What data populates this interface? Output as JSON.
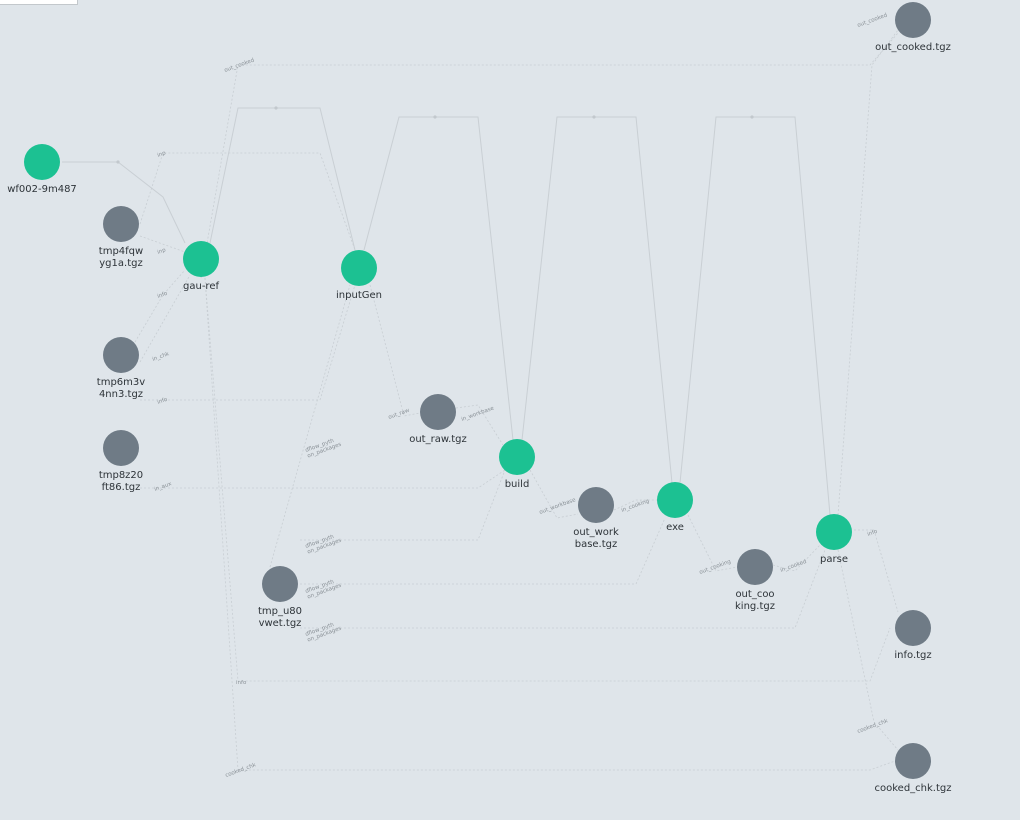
{
  "graph": {
    "nodes": [
      {
        "id": "wf",
        "kind": "step",
        "lines": [
          "wf002-9m487"
        ]
      },
      {
        "id": "tmp4",
        "kind": "file",
        "lines": [
          "tmp4fqw",
          "yg1a.tgz"
        ]
      },
      {
        "id": "gau",
        "kind": "step",
        "lines": [
          "gau-ref"
        ]
      },
      {
        "id": "tmp6",
        "kind": "file",
        "lines": [
          "tmp6m3v",
          "4nn3.tgz"
        ]
      },
      {
        "id": "tmp8",
        "kind": "file",
        "lines": [
          "tmp8z20",
          "ft86.tgz"
        ]
      },
      {
        "id": "input",
        "kind": "step",
        "lines": [
          "inputGen"
        ]
      },
      {
        "id": "outraw",
        "kind": "file",
        "lines": [
          "out_raw.tgz"
        ]
      },
      {
        "id": "build",
        "kind": "step",
        "lines": [
          "build"
        ]
      },
      {
        "id": "outwork",
        "kind": "file",
        "lines": [
          "out_work",
          "base.tgz"
        ]
      },
      {
        "id": "exe",
        "kind": "step",
        "lines": [
          "exe"
        ]
      },
      {
        "id": "outcook",
        "kind": "file",
        "lines": [
          "out_coo",
          "king.tgz"
        ]
      },
      {
        "id": "parse",
        "kind": "step",
        "lines": [
          "parse"
        ]
      },
      {
        "id": "tmpu",
        "kind": "file",
        "lines": [
          "tmp_u80",
          "vwet.tgz"
        ]
      },
      {
        "id": "cooked",
        "kind": "file",
        "lines": [
          "out_cooked.tgz"
        ]
      },
      {
        "id": "info",
        "kind": "file",
        "lines": [
          "info.tgz"
        ]
      },
      {
        "id": "chk",
        "kind": "file",
        "lines": [
          "cooked_chk.tgz"
        ]
      }
    ],
    "edge_labels": [
      {
        "id": "l-out-cooked-a",
        "lines": [
          "out_cooked"
        ]
      },
      {
        "id": "l-out-cooked-b",
        "lines": [
          "out_cooked"
        ]
      },
      {
        "id": "l-inp-a",
        "lines": [
          "inp"
        ]
      },
      {
        "id": "l-inp-b",
        "lines": [
          "inp"
        ]
      },
      {
        "id": "l-info-a",
        "lines": [
          "info"
        ]
      },
      {
        "id": "l-in-chk",
        "lines": [
          "in_chk"
        ]
      },
      {
        "id": "l-info-b",
        "lines": [
          "info"
        ]
      },
      {
        "id": "l-in-aux",
        "lines": [
          "in_aux"
        ]
      },
      {
        "id": "l-out-raw",
        "lines": [
          "out_raw"
        ]
      },
      {
        "id": "l-in-workbase",
        "lines": [
          "in_workbase"
        ]
      },
      {
        "id": "l-out-workbase",
        "lines": [
          "out_workbase"
        ]
      },
      {
        "id": "l-in-cooking",
        "lines": [
          "in_cooking"
        ]
      },
      {
        "id": "l-out-cooking",
        "lines": [
          "out_cooking"
        ]
      },
      {
        "id": "l-in-cooked",
        "lines": [
          "in_cooked"
        ]
      },
      {
        "id": "l-info-c",
        "lines": [
          "info"
        ]
      },
      {
        "id": "l-dflow-1",
        "lines": [
          "dflow_pyth",
          "on_packages"
        ]
      },
      {
        "id": "l-dflow-2",
        "lines": [
          "dflow_pyth",
          "on_packages"
        ]
      },
      {
        "id": "l-dflow-3",
        "lines": [
          "dflow_pyth",
          "on_packages"
        ]
      },
      {
        "id": "l-dflow-4",
        "lines": [
          "dflow_pyth",
          "on_packages"
        ]
      },
      {
        "id": "l-info-d",
        "lines": [
          "info"
        ]
      },
      {
        "id": "l-cooked-chk-a",
        "lines": [
          "cooked_chk"
        ]
      },
      {
        "id": "l-cooked-chk-b",
        "lines": [
          "cooked_chk"
        ]
      }
    ]
  },
  "colors": {
    "background": "#dfe5ea",
    "step_node": "#1cc192",
    "file_node": "#6f7b86"
  }
}
